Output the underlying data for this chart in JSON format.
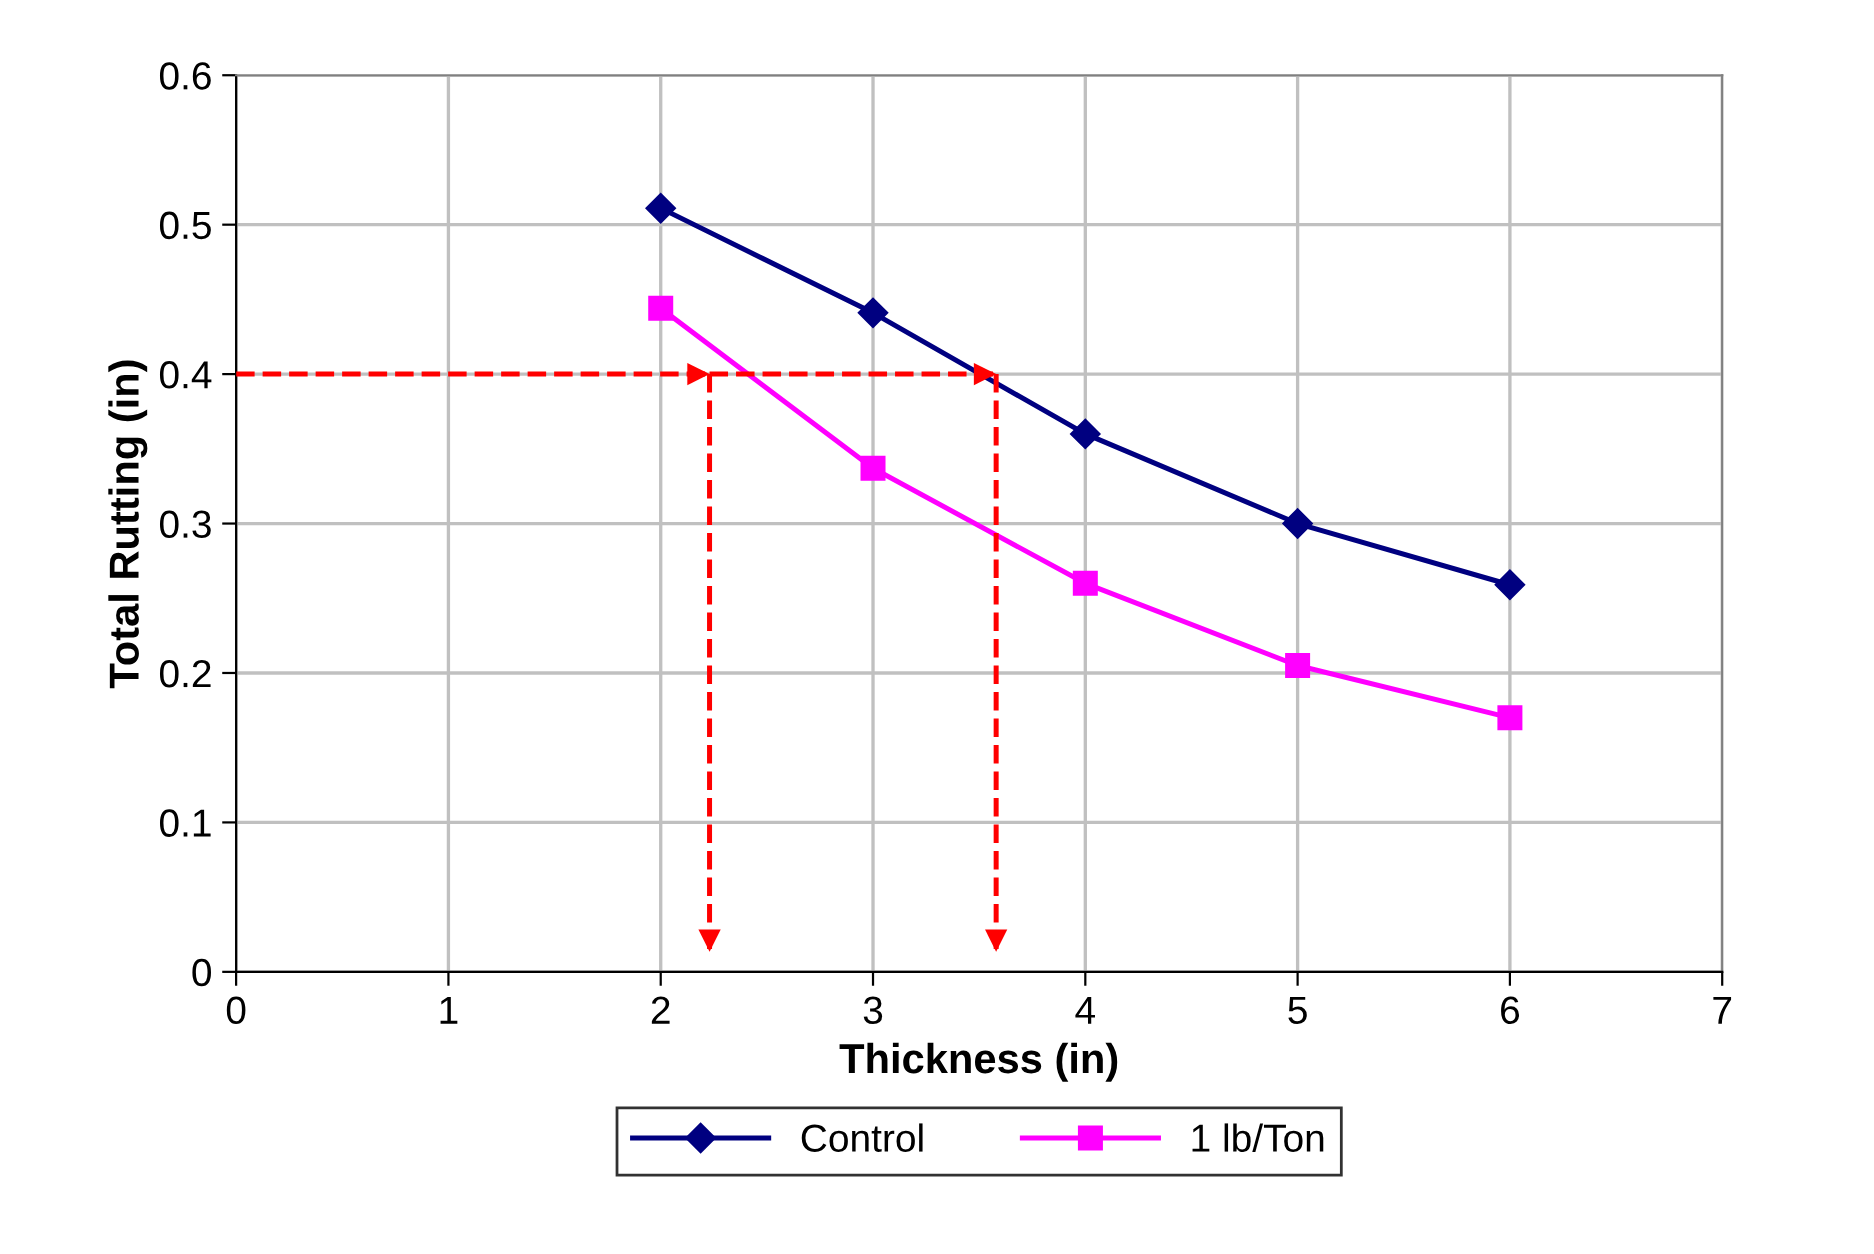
{
  "chart_data": {
    "type": "line",
    "xlabel": "Thickness (in)",
    "ylabel": "Total Rutting (in)",
    "xlim": [
      0,
      7
    ],
    "xticks": [
      0,
      1,
      2,
      3,
      4,
      5,
      6,
      7
    ],
    "ylim": [
      0,
      0.6
    ],
    "yticks": [
      0,
      0.1,
      0.2,
      0.3,
      0.4,
      0.5,
      0.6
    ],
    "grid": true,
    "legend": "bottom",
    "series": [
      {
        "name": "Control",
        "color": "#000080",
        "marker": "diamond",
        "line_style": "solid",
        "x": [
          2,
          3,
          4,
          5,
          6
        ],
        "values": [
          0.511,
          0.441,
          0.36,
          0.3,
          0.259
        ]
      },
      {
        "name": "1 lb/Ton",
        "color": "#ff00ff",
        "marker": "square",
        "line_style": "solid",
        "x": [
          2,
          3,
          4,
          5,
          6
        ],
        "values": [
          0.444,
          0.337,
          0.26,
          0.205,
          0.17
        ]
      }
    ],
    "ref_lines": [
      {
        "axis": "y",
        "value": 0.4,
        "color": "#ff0000",
        "line_style": "dashed"
      },
      {
        "axis": "x",
        "value": 2.23,
        "color": "#ff0000",
        "line_style": "dashed"
      },
      {
        "axis": "x",
        "value": 3.58,
        "color": "#ff0000",
        "line_style": "dashed"
      }
    ]
  }
}
